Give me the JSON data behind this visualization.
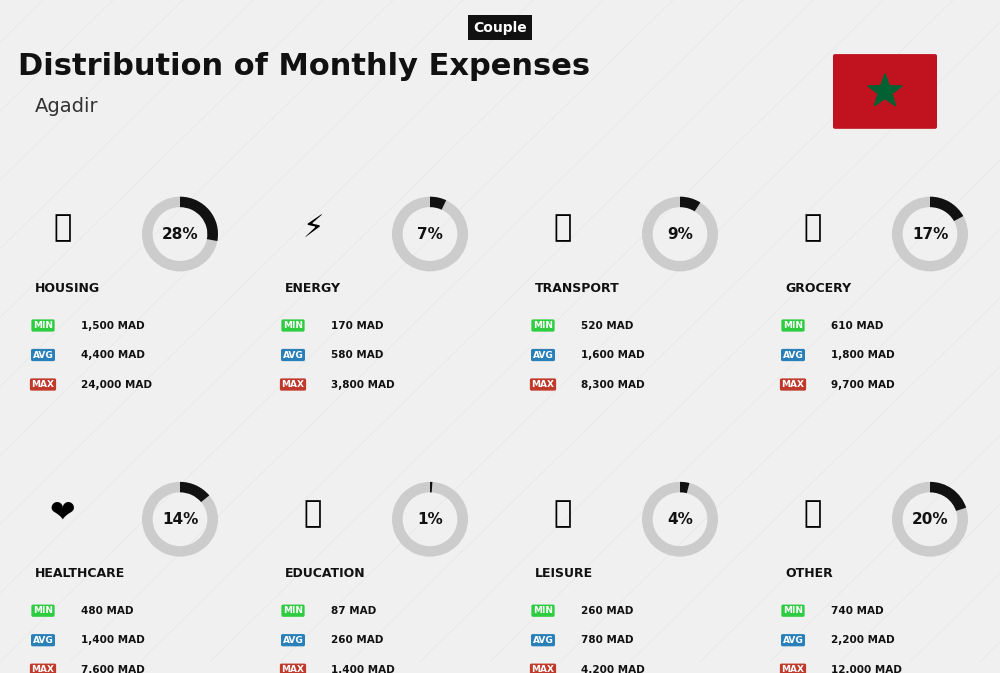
{
  "title": "Distribution of Monthly Expenses",
  "subtitle": "Agadir",
  "tag": "Couple",
  "bg_color": "#f0f0f0",
  "categories": [
    {
      "name": "HOUSING",
      "percent": 28,
      "emoji": "🏗",
      "min": "1,500 MAD",
      "avg": "4,400 MAD",
      "max": "24,000 MAD",
      "col": 0,
      "row": 0
    },
    {
      "name": "ENERGY",
      "percent": 7,
      "emoji": "⚡",
      "min": "170 MAD",
      "avg": "580 MAD",
      "max": "3,800 MAD",
      "col": 1,
      "row": 0
    },
    {
      "name": "TRANSPORT",
      "percent": 9,
      "emoji": "🚌",
      "min": "520 MAD",
      "avg": "1,600 MAD",
      "max": "8,300 MAD",
      "col": 2,
      "row": 0
    },
    {
      "name": "GROCERY",
      "percent": 17,
      "emoji": "🛒",
      "min": "610 MAD",
      "avg": "1,800 MAD",
      "max": "9,700 MAD",
      "col": 3,
      "row": 0
    },
    {
      "name": "HEALTHCARE",
      "percent": 14,
      "emoji": "❤",
      "min": "480 MAD",
      "avg": "1,400 MAD",
      "max": "7,600 MAD",
      "col": 0,
      "row": 1
    },
    {
      "name": "EDUCATION",
      "percent": 1,
      "emoji": "🎓",
      "min": "87 MAD",
      "avg": "260 MAD",
      "max": "1,400 MAD",
      "col": 1,
      "row": 1
    },
    {
      "name": "LEISURE",
      "percent": 4,
      "emoji": "🛍",
      "min": "260 MAD",
      "avg": "780 MAD",
      "max": "4,200 MAD",
      "col": 2,
      "row": 1
    },
    {
      "name": "OTHER",
      "percent": 20,
      "emoji": "💰",
      "min": "740 MAD",
      "avg": "2,200 MAD",
      "max": "12,000 MAD",
      "col": 3,
      "row": 1
    }
  ],
  "color_min": "#2ecc40",
  "color_avg": "#2980b9",
  "color_max": "#c0392b",
  "color_tag_bg": "#111111",
  "color_tag_text": "#ffffff",
  "color_title": "#111111",
  "color_subtitle": "#333333",
  "color_cat_name": "#111111",
  "color_ring_active": "#111111",
  "color_ring_bg": "#cccccc",
  "flag_red": "#c1121f",
  "flag_green": "#006233"
}
